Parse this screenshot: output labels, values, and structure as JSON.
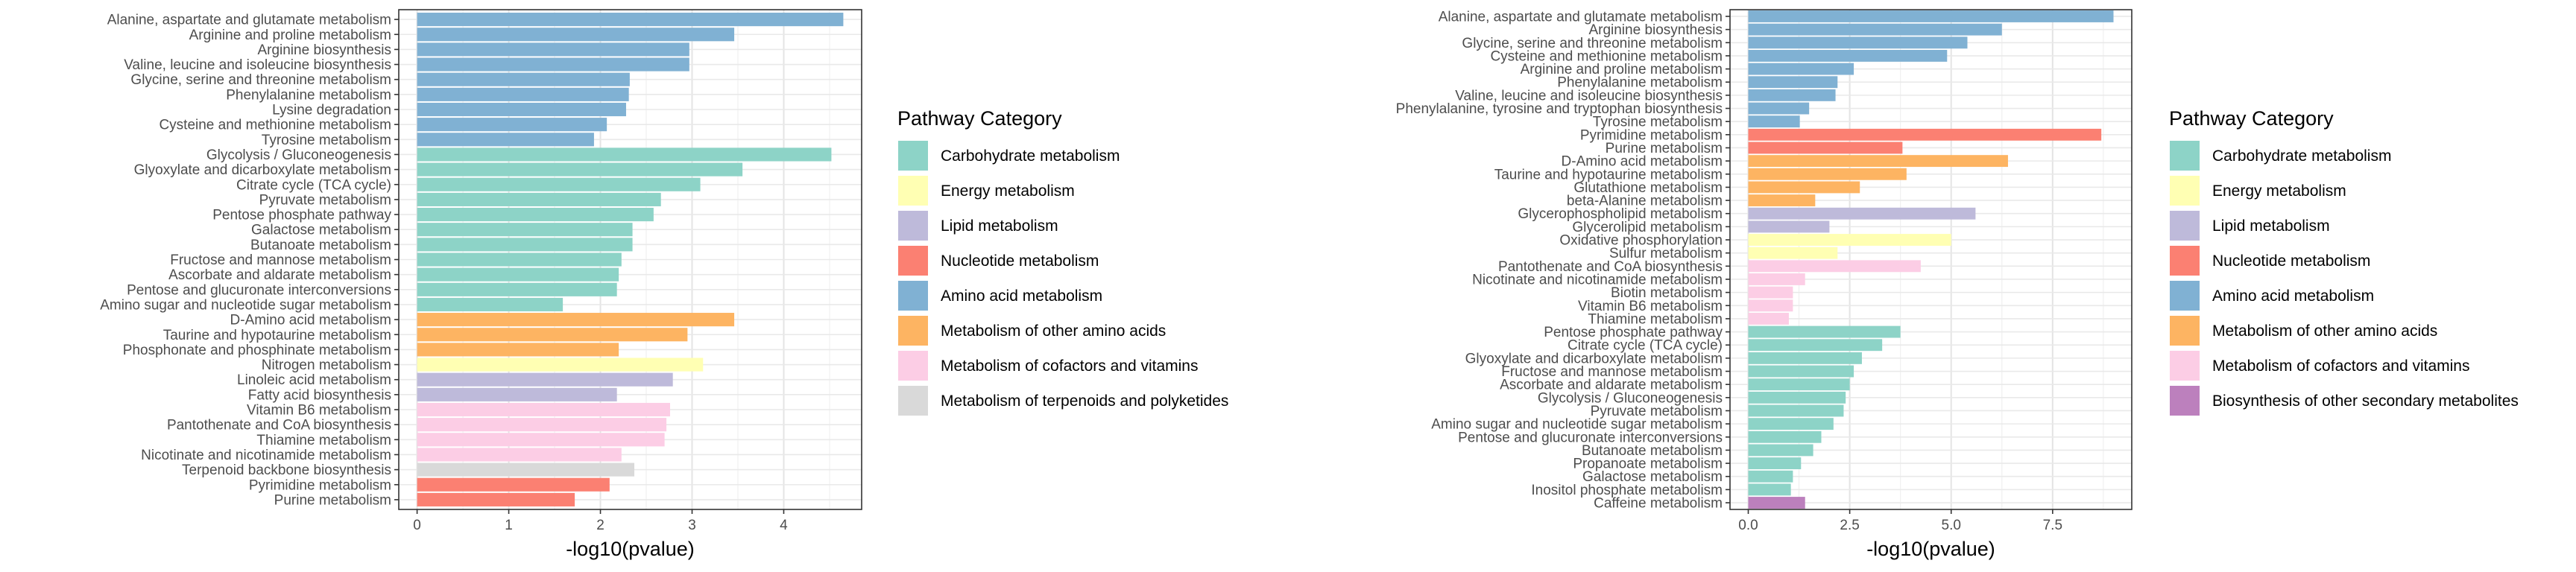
{
  "colors": {
    "Carbohydrate metabolism": "#8DD3C7",
    "Energy metabolism": "#FFFFB3",
    "Lipid metabolism": "#BEBADA",
    "Nucleotide metabolism": "#FB8072",
    "Amino acid metabolism": "#80B1D3",
    "Metabolism of other amino acids": "#FDB462",
    "Metabolism of cofactors and vitamins": "#FCCDE5",
    "Metabolism of terpenoids and polyketides": "#D9D9D9",
    "Biosynthesis of other secondary metabolites": "#BC80BD"
  },
  "chart_data": [
    {
      "type": "bar",
      "orientation": "horizontal",
      "xlabel": "-log10(pvalue)",
      "xlim": [
        -0.2,
        4.85
      ],
      "xticks": [
        0,
        1,
        2,
        3,
        4
      ],
      "xtick_labels": [
        "0",
        "1",
        "2",
        "3",
        "4"
      ],
      "grid": true,
      "legend_position": "right",
      "legend_title": "Pathway Category",
      "legend": [
        "Carbohydrate metabolism",
        "Energy metabolism",
        "Lipid metabolism",
        "Nucleotide metabolism",
        "Amino acid metabolism",
        "Metabolism of other amino acids",
        "Metabolism of cofactors and vitamins",
        "Metabolism of terpenoids and polyketides"
      ],
      "categories": [
        "Alanine, aspartate and glutamate metabolism",
        "Arginine and proline metabolism",
        "Arginine biosynthesis",
        "Valine, leucine and isoleucine biosynthesis",
        "Glycine, serine and threonine metabolism",
        "Phenylalanine metabolism",
        "Lysine degradation",
        "Cysteine and methionine metabolism",
        "Tyrosine metabolism",
        "Glycolysis / Gluconeogenesis",
        "Glyoxylate and dicarboxylate metabolism",
        "Citrate cycle (TCA cycle)",
        "Pyruvate metabolism",
        "Pentose phosphate pathway",
        "Galactose metabolism",
        "Butanoate metabolism",
        "Fructose and mannose metabolism",
        "Ascorbate and aldarate metabolism",
        "Pentose and glucuronate interconversions",
        "Amino sugar and nucleotide sugar metabolism",
        "D-Amino acid metabolism",
        "Taurine and hypotaurine metabolism",
        "Phosphonate and phosphinate metabolism",
        "Nitrogen metabolism",
        "Linoleic acid metabolism",
        "Fatty acid biosynthesis",
        "Vitamin B6 metabolism",
        "Pantothenate and CoA biosynthesis",
        "Thiamine metabolism",
        "Nicotinate and nicotinamide metabolism",
        "Terpenoid backbone biosynthesis",
        "Pyrimidine metabolism",
        "Purine metabolism"
      ],
      "values": [
        4.65,
        3.46,
        2.97,
        2.97,
        2.32,
        2.31,
        2.28,
        2.07,
        1.93,
        4.52,
        3.55,
        3.09,
        2.66,
        2.58,
        2.35,
        2.35,
        2.23,
        2.2,
        2.18,
        1.59,
        3.46,
        2.95,
        2.2,
        3.12,
        2.79,
        2.18,
        2.76,
        2.72,
        2.7,
        2.23,
        2.37,
        2.1,
        1.72
      ],
      "category_groups": [
        "Amino acid metabolism",
        "Amino acid metabolism",
        "Amino acid metabolism",
        "Amino acid metabolism",
        "Amino acid metabolism",
        "Amino acid metabolism",
        "Amino acid metabolism",
        "Amino acid metabolism",
        "Amino acid metabolism",
        "Carbohydrate metabolism",
        "Carbohydrate metabolism",
        "Carbohydrate metabolism",
        "Carbohydrate metabolism",
        "Carbohydrate metabolism",
        "Carbohydrate metabolism",
        "Carbohydrate metabolism",
        "Carbohydrate metabolism",
        "Carbohydrate metabolism",
        "Carbohydrate metabolism",
        "Carbohydrate metabolism",
        "Metabolism of other amino acids",
        "Metabolism of other amino acids",
        "Metabolism of other amino acids",
        "Energy metabolism",
        "Lipid metabolism",
        "Lipid metabolism",
        "Metabolism of cofactors and vitamins",
        "Metabolism of cofactors and vitamins",
        "Metabolism of cofactors and vitamins",
        "Metabolism of cofactors and vitamins",
        "Metabolism of terpenoids and polyketides",
        "Nucleotide metabolism",
        "Nucleotide metabolism"
      ]
    },
    {
      "type": "bar",
      "orientation": "horizontal",
      "xlabel": "-log10(pvalue)",
      "xlim": [
        -0.45,
        9.45
      ],
      "xticks": [
        0,
        2.5,
        5,
        7.5
      ],
      "xtick_labels": [
        "0.0",
        "2.5",
        "5.0",
        "7.5"
      ],
      "grid": true,
      "legend_position": "right",
      "legend_title": "Pathway Category",
      "legend": [
        "Carbohydrate metabolism",
        "Energy metabolism",
        "Lipid metabolism",
        "Nucleotide metabolism",
        "Amino acid metabolism",
        "Metabolism of other amino acids",
        "Metabolism of cofactors and vitamins",
        "Biosynthesis of other secondary metabolites"
      ],
      "categories": [
        "Alanine, aspartate and glutamate metabolism",
        "Arginine biosynthesis",
        "Glycine, serine and threonine metabolism",
        "Cysteine and methionine metabolism",
        "Arginine and proline metabolism",
        "Phenylalanine metabolism",
        "Valine, leucine and isoleucine biosynthesis",
        "Phenylalanine, tyrosine and tryptophan biosynthesis",
        "Tyrosine metabolism",
        "Pyrimidine metabolism",
        "Purine metabolism",
        "D-Amino acid metabolism",
        "Taurine and hypotaurine metabolism",
        "Glutathione metabolism",
        "beta-Alanine metabolism",
        "Glycerophospholipid metabolism",
        "Glycerolipid metabolism",
        "Oxidative phosphorylation",
        "Sulfur metabolism",
        "Pantothenate and CoA biosynthesis",
        "Nicotinate and nicotinamide metabolism",
        "Biotin metabolism",
        "Vitamin B6 metabolism",
        "Thiamine metabolism",
        "Pentose phosphate pathway",
        "Citrate cycle (TCA cycle)",
        "Glyoxylate and dicarboxylate metabolism",
        "Fructose and mannose metabolism",
        "Ascorbate and aldarate metabolism",
        "Glycolysis / Gluconeogenesis",
        "Pyruvate metabolism",
        "Amino sugar and nucleotide sugar metabolism",
        "Pentose and glucuronate interconversions",
        "Butanoate metabolism",
        "Propanoate metabolism",
        "Galactose metabolism",
        "Inositol phosphate metabolism",
        "Caffeine metabolism"
      ],
      "values": [
        9.0,
        6.25,
        5.4,
        4.9,
        2.6,
        2.2,
        2.15,
        1.5,
        1.27,
        8.7,
        3.8,
        6.4,
        3.9,
        2.75,
        1.65,
        5.6,
        2.0,
        5.0,
        2.2,
        4.25,
        1.4,
        1.1,
        1.1,
        1.0,
        3.75,
        3.3,
        2.8,
        2.6,
        2.5,
        2.4,
        2.35,
        2.1,
        1.8,
        1.6,
        1.3,
        1.1,
        1.05,
        1.4
      ],
      "category_groups": [
        "Amino acid metabolism",
        "Amino acid metabolism",
        "Amino acid metabolism",
        "Amino acid metabolism",
        "Amino acid metabolism",
        "Amino acid metabolism",
        "Amino acid metabolism",
        "Amino acid metabolism",
        "Amino acid metabolism",
        "Nucleotide metabolism",
        "Nucleotide metabolism",
        "Metabolism of other amino acids",
        "Metabolism of other amino acids",
        "Metabolism of other amino acids",
        "Metabolism of other amino acids",
        "Lipid metabolism",
        "Lipid metabolism",
        "Energy metabolism",
        "Energy metabolism",
        "Metabolism of cofactors and vitamins",
        "Metabolism of cofactors and vitamins",
        "Metabolism of cofactors and vitamins",
        "Metabolism of cofactors and vitamins",
        "Metabolism of cofactors and vitamins",
        "Carbohydrate metabolism",
        "Carbohydrate metabolism",
        "Carbohydrate metabolism",
        "Carbohydrate metabolism",
        "Carbohydrate metabolism",
        "Carbohydrate metabolism",
        "Carbohydrate metabolism",
        "Carbohydrate metabolism",
        "Carbohydrate metabolism",
        "Carbohydrate metabolism",
        "Carbohydrate metabolism",
        "Carbohydrate metabolism",
        "Carbohydrate metabolism",
        "Biosynthesis of other secondary metabolites"
      ]
    }
  ]
}
